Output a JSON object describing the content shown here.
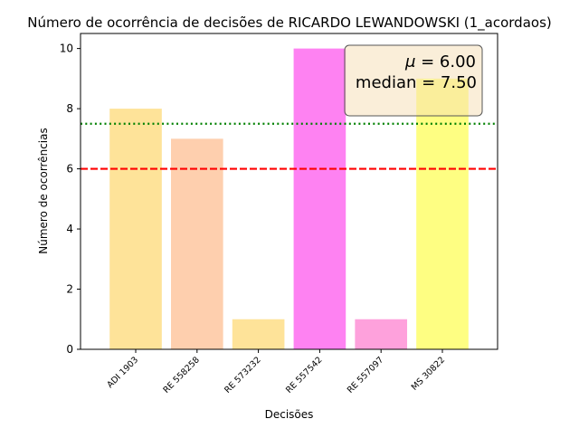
{
  "chart_data": {
    "type": "bar",
    "title": "Número de ocorrência de decisões de RICARDO LEWANDOWSKI (1_acordaos)",
    "xlabel": "Decisões",
    "ylabel": "Número de ocorrências",
    "categories": [
      "ADI 1903",
      "RE 558258",
      "RE 573232",
      "RE 557542",
      "RE 557097",
      "MS 30822"
    ],
    "values": [
      8,
      7,
      1,
      10,
      1,
      9
    ],
    "bar_colors": [
      "#fee399",
      "#fecfae",
      "#fee399",
      "#fe82f2",
      "#fea1dc",
      "#fefe82"
    ],
    "ylim": [
      0,
      10.5
    ],
    "yticks": [
      0,
      2,
      4,
      6,
      8,
      10
    ],
    "ytick_labels": [
      "0",
      "2",
      "4",
      "6",
      "8",
      "10"
    ],
    "reference_lines": [
      {
        "value": 6.0,
        "color": "#ff0000",
        "style": "dashed",
        "kind": "mean"
      },
      {
        "value": 7.5,
        "color": "#008000",
        "style": "dotted",
        "kind": "median"
      }
    ],
    "annotation": {
      "mean_symbol": "μ",
      "mean_operator": " = ",
      "mean_value": "6.00",
      "median_prefix": "median",
      "median_operator": " = ",
      "median_value": "7.50",
      "placement": "top-right",
      "box_fill": "#f5deb3",
      "box_edge": "#555555"
    },
    "grid": false,
    "legend": "none"
  }
}
